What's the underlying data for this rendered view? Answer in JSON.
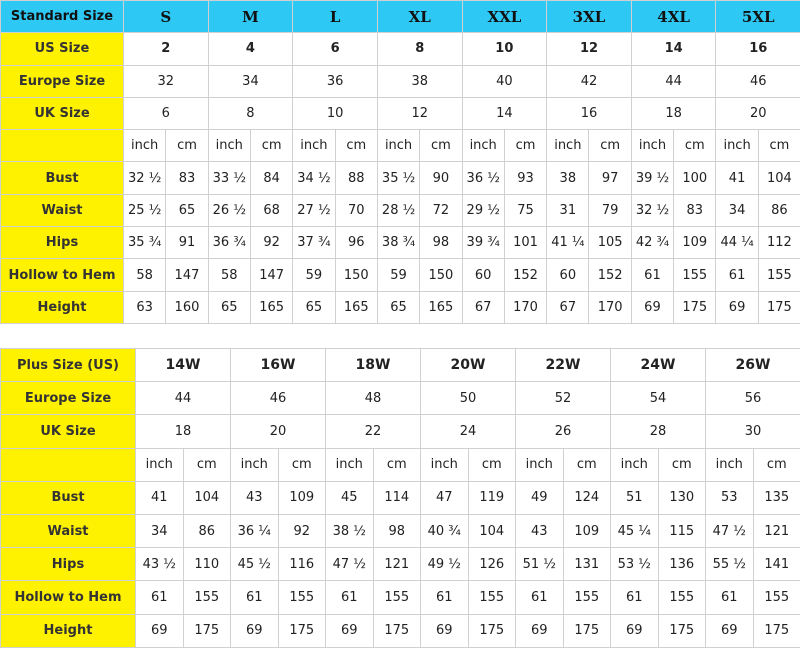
{
  "standard": {
    "header": "Standard Size",
    "sizes": [
      "S",
      "M",
      "L",
      "XL",
      "XXL",
      "3XL",
      "4XL",
      "5XL"
    ],
    "size_rows": [
      {
        "label": "US Size",
        "values": [
          2,
          4,
          6,
          8,
          10,
          12,
          14,
          16
        ]
      },
      {
        "label": "Europe Size",
        "values": [
          32,
          34,
          36,
          38,
          40,
          42,
          44,
          46
        ]
      },
      {
        "label": "UK Size",
        "values": [
          6,
          8,
          10,
          12,
          14,
          16,
          18,
          20
        ]
      }
    ],
    "units": [
      "inch",
      "cm"
    ],
    "measure_rows": [
      {
        "label": "Bust",
        "values": [
          "32 ½",
          83,
          "33 ½",
          84,
          "34 ½",
          88,
          "35 ½",
          90,
          "36 ½",
          93,
          38,
          97,
          "39 ½",
          100,
          41,
          104
        ]
      },
      {
        "label": "Waist",
        "values": [
          "25 ½",
          65,
          "26 ½",
          68,
          "27 ½",
          70,
          "28 ½",
          72,
          "29 ½",
          75,
          31,
          79,
          "32 ½",
          83,
          34,
          86
        ]
      },
      {
        "label": "Hips",
        "values": [
          "35 ¾",
          91,
          "36 ¾",
          92,
          "37 ¾",
          96,
          "38 ¾",
          98,
          "39 ¾",
          101,
          "41 ¼",
          105,
          "42 ¾",
          109,
          "44 ¼",
          112
        ]
      },
      {
        "label": "Hollow to Hem",
        "values": [
          58,
          147,
          58,
          147,
          59,
          150,
          59,
          150,
          60,
          152,
          60,
          152,
          61,
          155,
          61,
          155
        ]
      },
      {
        "label": "Height",
        "values": [
          63,
          160,
          65,
          165,
          65,
          165,
          65,
          165,
          67,
          170,
          67,
          170,
          69,
          175,
          69,
          175
        ]
      }
    ]
  },
  "plus": {
    "header": "Plus Size (US)",
    "sizes": [
      "14W",
      "16W",
      "18W",
      "20W",
      "22W",
      "24W",
      "26W"
    ],
    "size_rows": [
      {
        "label": "Europe Size",
        "values": [
          44,
          46,
          48,
          50,
          52,
          54,
          56
        ]
      },
      {
        "label": "UK Size",
        "values": [
          18,
          20,
          22,
          24,
          26,
          28,
          30
        ]
      }
    ],
    "units": [
      "inch",
      "cm"
    ],
    "measure_rows": [
      {
        "label": "Bust",
        "values": [
          41,
          104,
          43,
          109,
          45,
          114,
          47,
          119,
          49,
          124,
          51,
          130,
          53,
          135
        ]
      },
      {
        "label": "Waist",
        "values": [
          34,
          86,
          "36 ¼",
          92,
          "38 ½",
          98,
          "40 ¾",
          104,
          43,
          109,
          "45 ¼",
          115,
          "47 ½",
          121
        ]
      },
      {
        "label": "Hips",
        "values": [
          "43 ½",
          110,
          "45 ½",
          116,
          "47 ½",
          121,
          "49 ½",
          126,
          "51 ½",
          131,
          "53 ½",
          136,
          "55 ½",
          141
        ]
      },
      {
        "label": "Hollow to Hem",
        "values": [
          61,
          155,
          61,
          155,
          61,
          155,
          61,
          155,
          61,
          155,
          61,
          155,
          61,
          155
        ]
      },
      {
        "label": "Height",
        "values": [
          69,
          175,
          69,
          175,
          69,
          175,
          69,
          175,
          69,
          175,
          69,
          175,
          69,
          175
        ]
      }
    ]
  }
}
